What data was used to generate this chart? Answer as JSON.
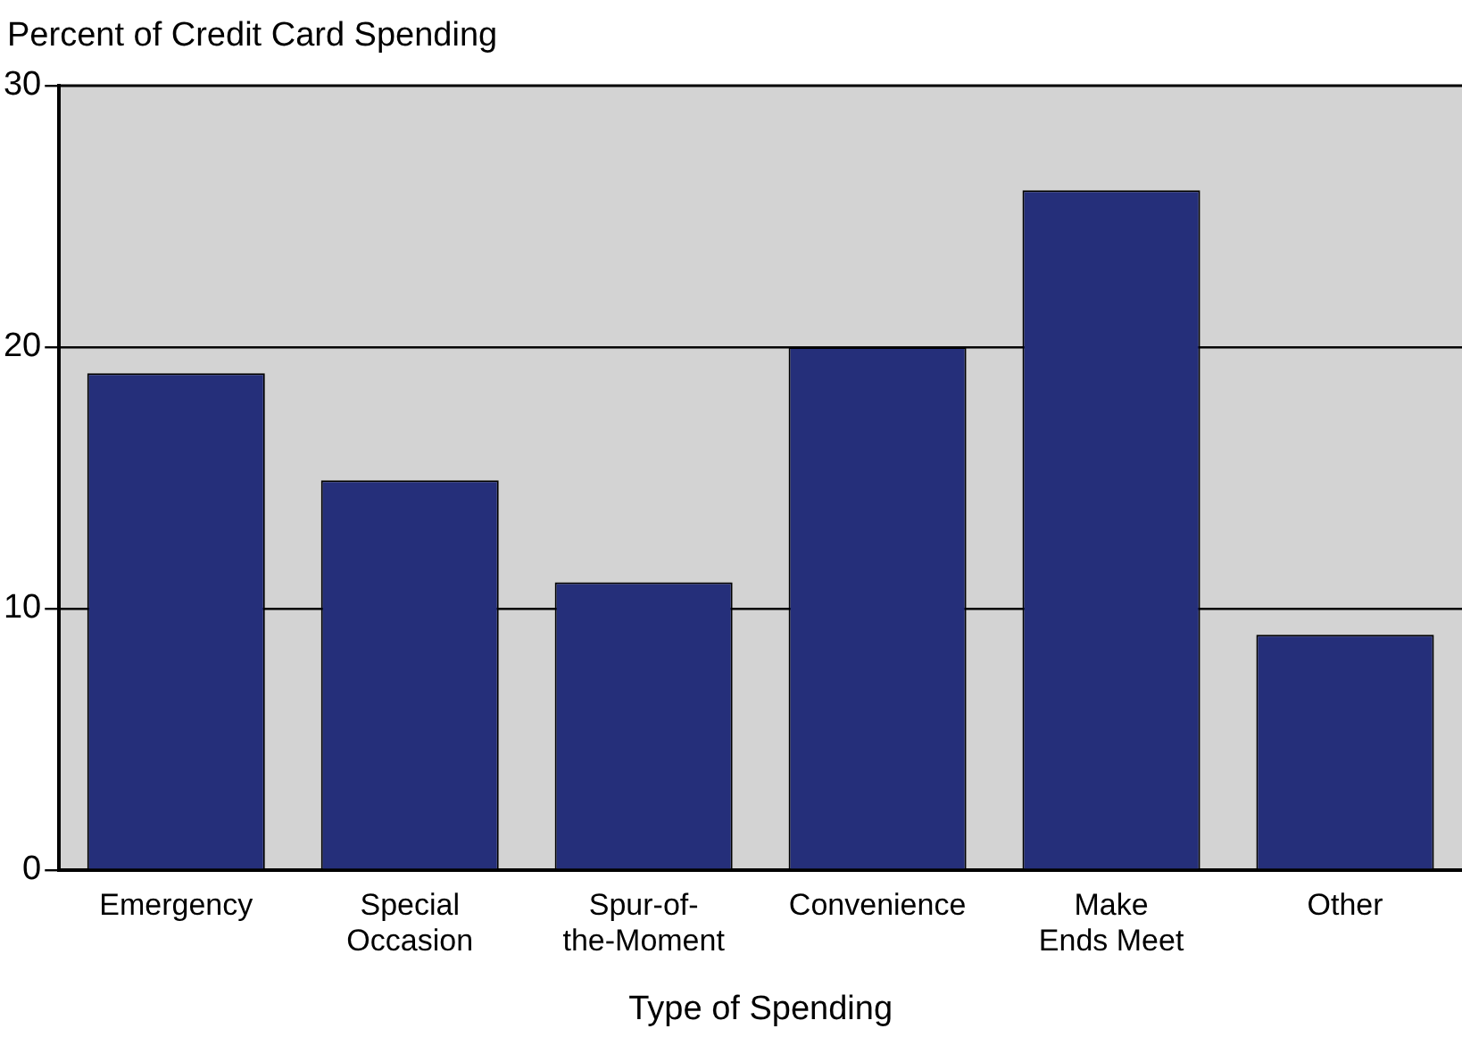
{
  "chart_data": {
    "type": "bar",
    "ylabel": "Percent of Credit Card Spending",
    "xlabel": "Type of Spending",
    "categories": [
      "Emergency",
      "Special\nOccasion",
      "Spur-of-\nthe-Moment",
      "Convenience",
      "Make\nEnds Meet",
      "Other"
    ],
    "values": [
      19,
      14.9,
      11,
      20,
      26,
      9
    ],
    "color": "#252f7a",
    "ylim": [
      0,
      30
    ],
    "yticks": [
      0,
      10,
      20,
      30
    ],
    "grid": "y"
  }
}
